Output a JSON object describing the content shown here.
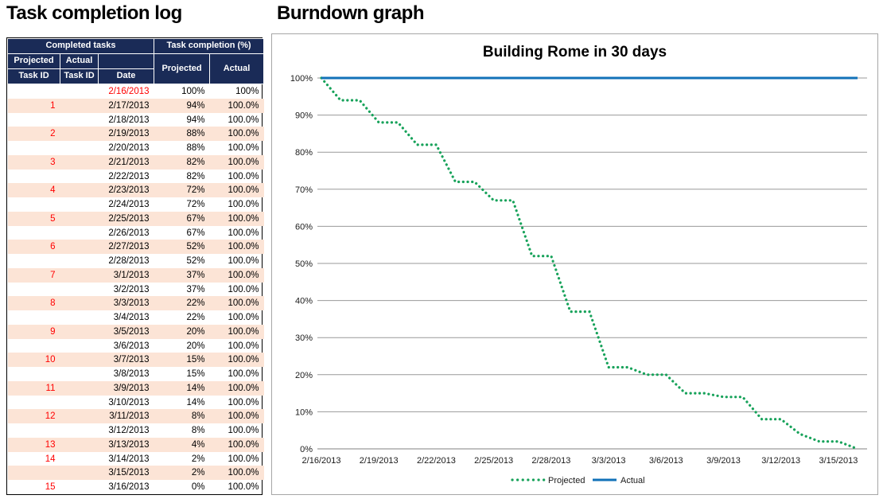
{
  "left_panel": {
    "title": "Task completion log",
    "table": {
      "group_headers": [
        "Completed tasks",
        "Task completion (%)"
      ],
      "headers": {
        "projected_id": [
          "Projected",
          "Task ID"
        ],
        "actual_id": [
          "Actual",
          "Task ID"
        ],
        "date": "Date",
        "projected_pct": "Projected",
        "actual_pct": "Actual"
      },
      "rows": [
        {
          "pid": "",
          "aid": "",
          "date": "2/16/2013",
          "proj": "100%",
          "act": "100%",
          "red_date": true
        },
        {
          "pid": "1",
          "aid": "",
          "date": "2/17/2013",
          "proj": "94%",
          "act": "100.0%"
        },
        {
          "pid": "",
          "aid": "",
          "date": "2/18/2013",
          "proj": "94%",
          "act": "100.0%"
        },
        {
          "pid": "2",
          "aid": "",
          "date": "2/19/2013",
          "proj": "88%",
          "act": "100.0%"
        },
        {
          "pid": "",
          "aid": "",
          "date": "2/20/2013",
          "proj": "88%",
          "act": "100.0%"
        },
        {
          "pid": "3",
          "aid": "",
          "date": "2/21/2013",
          "proj": "82%",
          "act": "100.0%"
        },
        {
          "pid": "",
          "aid": "",
          "date": "2/22/2013",
          "proj": "82%",
          "act": "100.0%"
        },
        {
          "pid": "4",
          "aid": "",
          "date": "2/23/2013",
          "proj": "72%",
          "act": "100.0%"
        },
        {
          "pid": "",
          "aid": "",
          "date": "2/24/2013",
          "proj": "72%",
          "act": "100.0%"
        },
        {
          "pid": "5",
          "aid": "",
          "date": "2/25/2013",
          "proj": "67%",
          "act": "100.0%"
        },
        {
          "pid": "",
          "aid": "",
          "date": "2/26/2013",
          "proj": "67%",
          "act": "100.0%"
        },
        {
          "pid": "6",
          "aid": "",
          "date": "2/27/2013",
          "proj": "52%",
          "act": "100.0%"
        },
        {
          "pid": "",
          "aid": "",
          "date": "2/28/2013",
          "proj": "52%",
          "act": "100.0%"
        },
        {
          "pid": "7",
          "aid": "",
          "date": "3/1/2013",
          "proj": "37%",
          "act": "100.0%"
        },
        {
          "pid": "",
          "aid": "",
          "date": "3/2/2013",
          "proj": "37%",
          "act": "100.0%"
        },
        {
          "pid": "8",
          "aid": "",
          "date": "3/3/2013",
          "proj": "22%",
          "act": "100.0%"
        },
        {
          "pid": "",
          "aid": "",
          "date": "3/4/2013",
          "proj": "22%",
          "act": "100.0%"
        },
        {
          "pid": "9",
          "aid": "",
          "date": "3/5/2013",
          "proj": "20%",
          "act": "100.0%"
        },
        {
          "pid": "",
          "aid": "",
          "date": "3/6/2013",
          "proj": "20%",
          "act": "100.0%"
        },
        {
          "pid": "10",
          "aid": "",
          "date": "3/7/2013",
          "proj": "15%",
          "act": "100.0%"
        },
        {
          "pid": "",
          "aid": "",
          "date": "3/8/2013",
          "proj": "15%",
          "act": "100.0%"
        },
        {
          "pid": "11",
          "aid": "",
          "date": "3/9/2013",
          "proj": "14%",
          "act": "100.0%"
        },
        {
          "pid": "",
          "aid": "",
          "date": "3/10/2013",
          "proj": "14%",
          "act": "100.0%"
        },
        {
          "pid": "12",
          "aid": "",
          "date": "3/11/2013",
          "proj": "8%",
          "act": "100.0%"
        },
        {
          "pid": "",
          "aid": "",
          "date": "3/12/2013",
          "proj": "8%",
          "act": "100.0%"
        },
        {
          "pid": "13",
          "aid": "",
          "date": "3/13/2013",
          "proj": "4%",
          "act": "100.0%"
        },
        {
          "pid": "14",
          "aid": "",
          "date": "3/14/2013",
          "proj": "2%",
          "act": "100.0%"
        },
        {
          "pid": "",
          "aid": "",
          "date": "3/15/2013",
          "proj": "2%",
          "act": "100.0%"
        },
        {
          "pid": "15",
          "aid": "",
          "date": "3/16/2013",
          "proj": "0%",
          "act": "100.0%"
        }
      ]
    }
  },
  "right_panel": {
    "title": "Burndown graph"
  },
  "chart_data": {
    "type": "line",
    "title": "Building Rome in 30 days",
    "x": [
      "2/16/2013",
      "2/17/2013",
      "2/18/2013",
      "2/19/2013",
      "2/20/2013",
      "2/21/2013",
      "2/22/2013",
      "2/23/2013",
      "2/24/2013",
      "2/25/2013",
      "2/26/2013",
      "2/27/2013",
      "2/28/2013",
      "3/1/2013",
      "3/2/2013",
      "3/3/2013",
      "3/4/2013",
      "3/5/2013",
      "3/6/2013",
      "3/7/2013",
      "3/8/2013",
      "3/9/2013",
      "3/10/2013",
      "3/11/2013",
      "3/12/2013",
      "3/13/2013",
      "3/14/2013",
      "3/15/2013",
      "3/16/2013"
    ],
    "series": [
      {
        "name": "Projected",
        "style": "dotted",
        "color": "#17A25A",
        "values": [
          100,
          94,
          94,
          88,
          88,
          82,
          82,
          72,
          72,
          67,
          67,
          52,
          52,
          37,
          37,
          22,
          22,
          20,
          20,
          15,
          15,
          14,
          14,
          8,
          8,
          4,
          2,
          2,
          0
        ]
      },
      {
        "name": "Actual",
        "style": "solid",
        "color": "#1272B8",
        "values": [
          100,
          100,
          100,
          100,
          100,
          100,
          100,
          100,
          100,
          100,
          100,
          100,
          100,
          100,
          100,
          100,
          100,
          100,
          100,
          100,
          100,
          100,
          100,
          100,
          100,
          100,
          100,
          100,
          100
        ]
      }
    ],
    "ylim": [
      0,
      100
    ],
    "ytick_step": 10,
    "ytick_labels": [
      "100%",
      "90%",
      "80%",
      "70%",
      "60%",
      "50%",
      "40%",
      "30%",
      "20%",
      "10%",
      "0%"
    ],
    "xtick_labels": [
      "2/16/2013",
      "2/19/2013",
      "2/22/2013",
      "2/25/2013",
      "2/28/2013",
      "3/3/2013",
      "3/6/2013",
      "3/9/2013",
      "3/12/2013",
      "3/15/2013"
    ],
    "xtick_every": 3,
    "grid": true,
    "legend_position": "bottom"
  },
  "colors": {
    "table_header_bg": "#1A2B57",
    "row_alt_bg": "#FCE4D6",
    "accent_red": "#FF0000",
    "projected_green": "#17A25A",
    "actual_blue": "#1272B8",
    "gridline": "#999999",
    "axis_line": "#808080",
    "chart_border": "#A6A6A6"
  }
}
